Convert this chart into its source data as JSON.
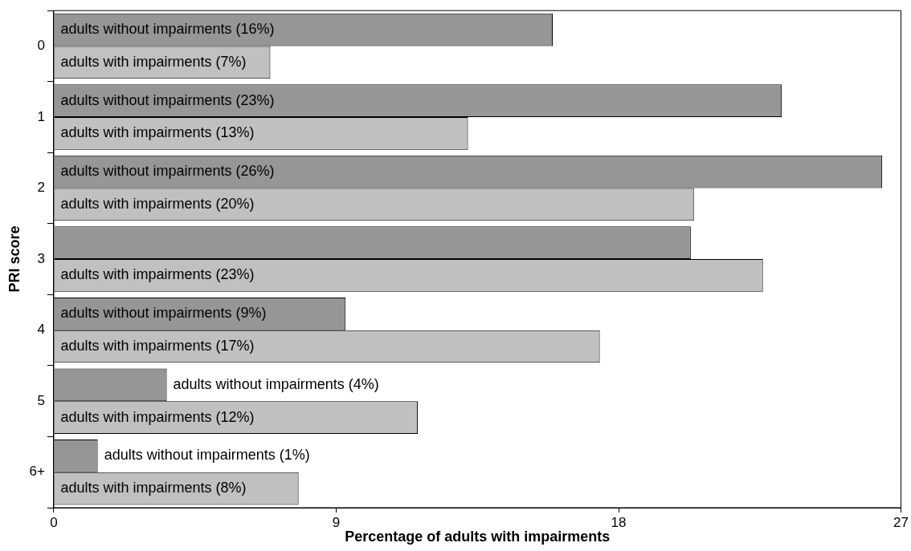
{
  "chart_data": {
    "type": "bar",
    "orientation": "horizontal",
    "xlabel": "Percentage of adults with impairments",
    "ylabel": "PRI score",
    "categories": [
      "0",
      "1",
      "2",
      "3",
      "4",
      "5",
      "6+"
    ],
    "series": [
      {
        "color": "#969696",
        "values": [
          15.9,
          23.2,
          26.4,
          20.3,
          9.3,
          3.6,
          1.4
        ],
        "value_labels": [
          "adults without impairments (16%)",
          "adults without impairments (23%)",
          "adults without impairments (26%)",
          null,
          "adults without impairments (9%)",
          "adults without impairments (4%)",
          "adults without impairments (1%)"
        ]
      },
      {
        "color": "#c0c0c0",
        "values": [
          6.9,
          13.2,
          20.4,
          22.6,
          17.4,
          11.6,
          7.8
        ],
        "value_labels": [
          "adults with impairments (7%)",
          "adults with impairments (13%)",
          "adults with impairments (20%)",
          "adults with impairments (23%)",
          "adults with impairments (17%)",
          "adults with impairments (12%)",
          "adults with impairments (8%)"
        ]
      }
    ],
    "xlim": [
      0,
      27
    ],
    "xticks": [
      0,
      9,
      18,
      27
    ],
    "grid": false,
    "legend": false
  }
}
